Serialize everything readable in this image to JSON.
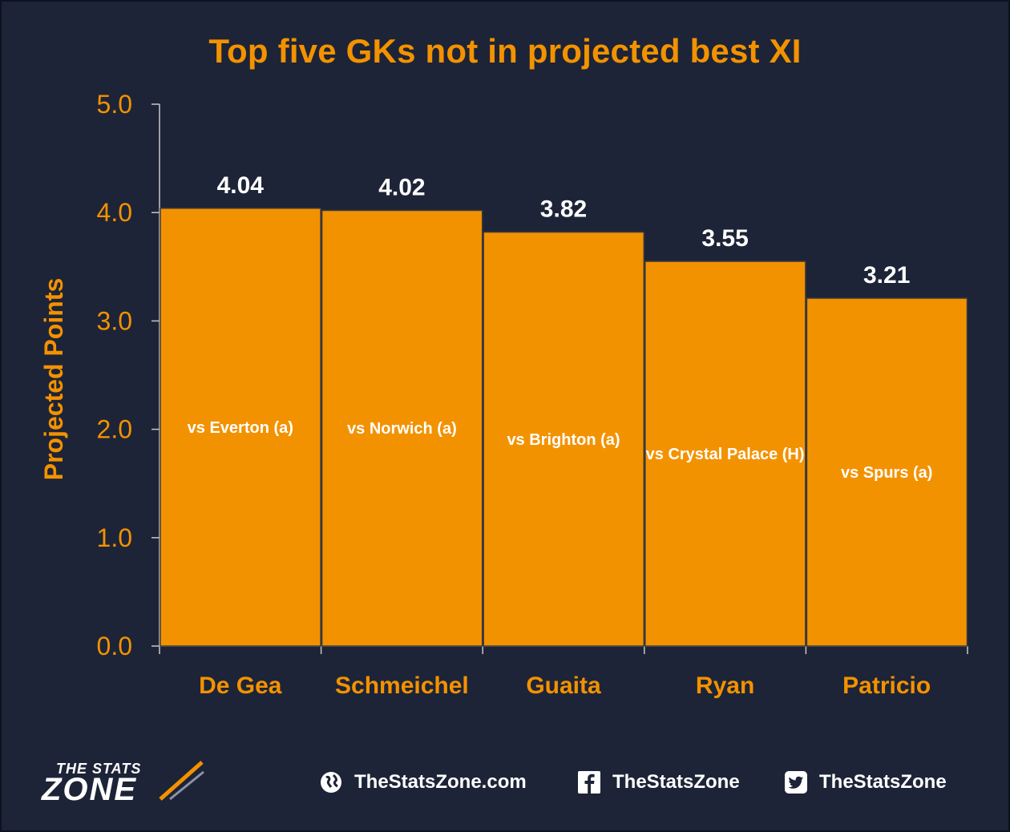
{
  "chart_data": {
    "type": "bar",
    "title": "Top five GKs not in projected best XI",
    "ylabel": "Projected Points",
    "ylim": [
      0,
      5
    ],
    "yticks": [
      "0.0",
      "1.0",
      "2.0",
      "3.0",
      "4.0",
      "5.0"
    ],
    "categories": [
      "De Gea",
      "Schmeichel",
      "Guaita",
      "Ryan",
      "Patricio"
    ],
    "values": [
      4.04,
      4.02,
      3.82,
      3.55,
      3.21
    ],
    "value_labels": [
      "4.04",
      "4.02",
      "3.82",
      "3.55",
      "3.21"
    ],
    "bar_annotations": [
      "vs Everton (a)",
      "vs Norwich (a)",
      "vs Brighton (a)",
      "vs Crystal Palace (H)",
      "vs Spurs (a)"
    ],
    "grid": false,
    "colors": {
      "bar": "#f39200",
      "background": "#1d2437",
      "text_accent": "#f39200",
      "value_text": "#ffffff"
    }
  },
  "footer": {
    "logo_top": "THE STATS",
    "logo_main": "ZONE",
    "website": "TheStatsZone.com",
    "facebook": "TheStatsZone",
    "twitter": "TheStatsZone",
    "icons": [
      "globe-icon",
      "facebook-icon",
      "twitter-icon"
    ]
  }
}
